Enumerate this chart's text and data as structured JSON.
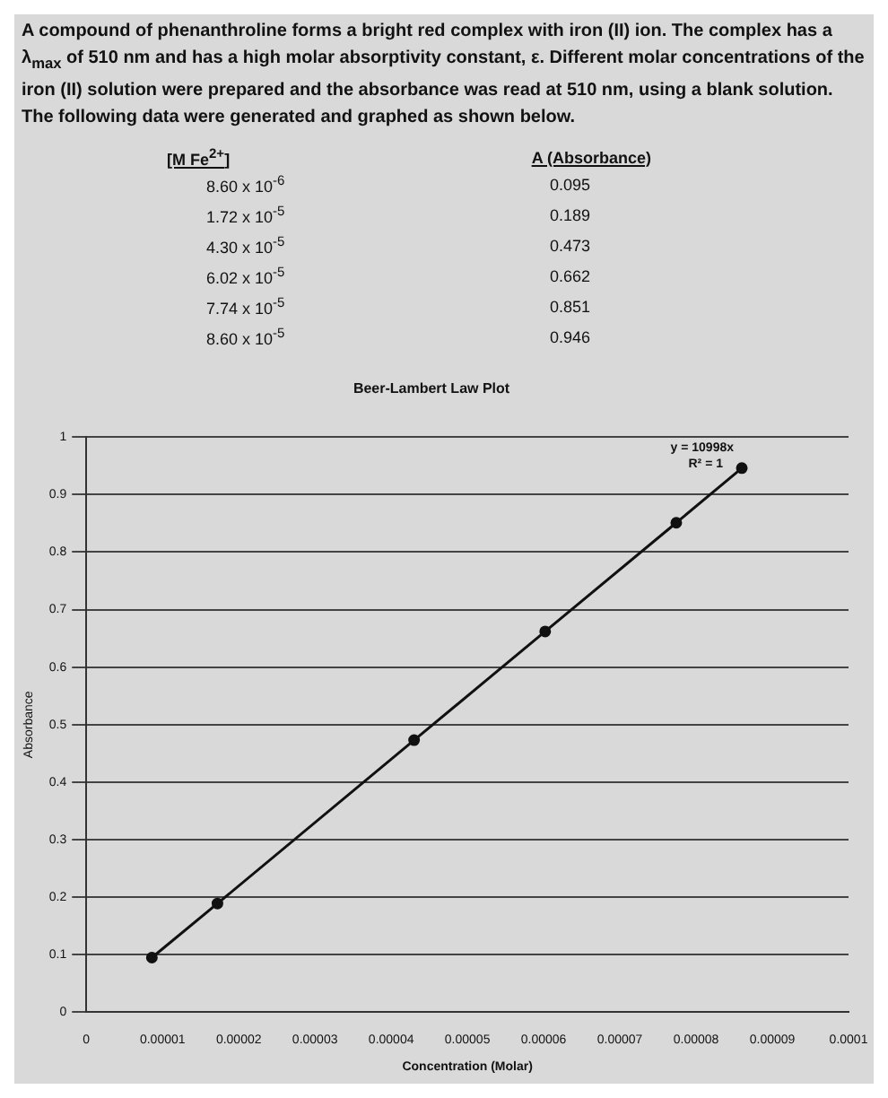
{
  "chart_data": {
    "type": "line",
    "title": "Beer-Lambert Law Plot",
    "xlabel": "Concentration (Molar)",
    "ylabel": "Absorbance",
    "x": [
      8.6e-06,
      1.72e-05,
      4.3e-05,
      6.02e-05,
      7.74e-05,
      8.6e-05
    ],
    "series": [
      {
        "color": "#111111",
        "values": [
          0.095,
          0.189,
          0.473,
          0.662,
          0.851,
          0.946
        ]
      }
    ],
    "xlim": [
      0,
      0.0001
    ],
    "xticks": [
      0,
      {
        "value": 1e-05,
        "label": "0.00001"
      },
      {
        "value": 2e-05,
        "label": "0.00002"
      },
      {
        "value": 3e-05,
        "label": "0.00003"
      },
      {
        "value": 4e-05,
        "label": "0.00004"
      },
      {
        "value": 5e-05,
        "label": "0.00005"
      },
      {
        "value": 6e-05,
        "label": "0.00006"
      },
      {
        "value": 7e-05,
        "label": "0.00007"
      },
      {
        "value": 8e-05,
        "label": "0.00008"
      },
      {
        "value": 9e-05,
        "label": "0.00009"
      },
      {
        "value": 0.0001,
        "label": "0.0001"
      }
    ],
    "ylim": [
      0,
      1
    ],
    "yticks": [
      0,
      0.1,
      0.2,
      0.3,
      0.4,
      0.5,
      0.6,
      0.7,
      0.8,
      0.9,
      1
    ],
    "grid": "y",
    "legend": false,
    "marker": "circle",
    "line_style": "solid",
    "annotations": [
      "A compound of phenanthroline forms a bright red complex with iron (II) ion. The complex has a λ$_{max}$ of 510 nm and has a high molar absorptivity constant, ε. Different molar concentrations of the iron (II) solution were prepared and the absorbance was read at 510 nm, using a blank solution. The following data were generated and graphed as shown below.",
      "[M Fe$^{2+}$]",
      "A (Absorbance)",
      "8.60 x 10$^{-6}$",
      "1.72 x 10$^{-5}$",
      "4.30 x 10$^{-5}$",
      "6.02 x 10$^{-5}$",
      "7.74 x 10$^{-5}$",
      "8.60 x 10$^{-5}$",
      "0.095",
      "0.189",
      "0.473",
      "0.662",
      "0.851",
      "0.946",
      "y = 10998x",
      "R² = 1"
    ]
  }
}
